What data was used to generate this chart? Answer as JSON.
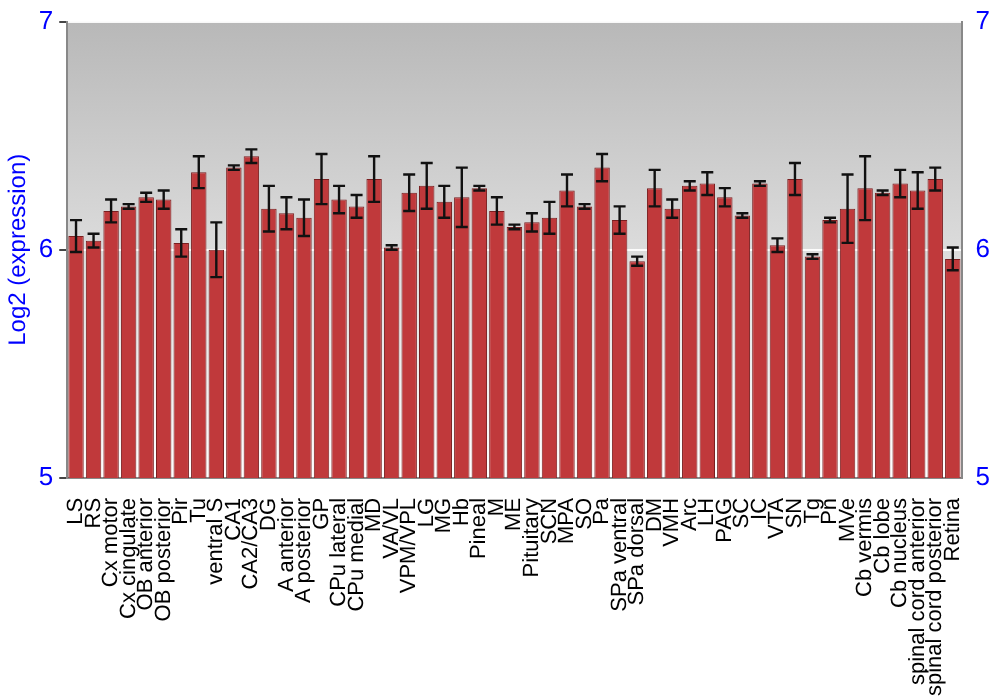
{
  "chart_data": {
    "type": "bar",
    "ylabel": "Log2 (expression)",
    "categories": [
      "LS",
      "RS",
      "Cx motor",
      "Cx cingulate",
      "OB anterior",
      "OB posterior",
      "Pir",
      "Tu",
      "ventral S",
      "CA1",
      "CA2/CA3",
      "DG",
      "A anterior",
      "A posterior",
      "GP",
      "CPu lateral",
      "CPu medial",
      "MD",
      "VA/VL",
      "VPM/VPL",
      "LG",
      "MG",
      "Hb",
      "Pineal",
      "M",
      "ME",
      "Pituitary",
      "SCN",
      "MPA",
      "SO",
      "Pa",
      "SPa ventral",
      "SPa dorsal",
      "DM",
      "VMH",
      "Arc",
      "LH",
      "PAG",
      "SC",
      "IC",
      "VTA",
      "SN",
      "Tg",
      "Pn",
      "MVe",
      "Cb vermis",
      "Cb lobe",
      "Cb nucleus",
      "spinal cord anterior",
      "spinal cord posterior",
      "Retina"
    ],
    "values": [
      6.06,
      6.04,
      6.17,
      6.19,
      6.23,
      6.22,
      6.03,
      6.34,
      6.0,
      6.36,
      6.41,
      6.18,
      6.16,
      6.14,
      6.31,
      6.22,
      6.19,
      6.31,
      6.01,
      6.25,
      6.28,
      6.21,
      6.23,
      6.27,
      6.17,
      6.1,
      6.12,
      6.14,
      6.26,
      6.19,
      6.36,
      6.13,
      5.95,
      6.27,
      6.18,
      6.28,
      6.29,
      6.23,
      6.15,
      6.29,
      6.02,
      6.31,
      5.97,
      6.13,
      6.18,
      6.27,
      6.25,
      6.29,
      6.26,
      6.31,
      5.96
    ],
    "errors": [
      0.07,
      0.03,
      0.05,
      0.01,
      0.02,
      0.04,
      0.06,
      0.07,
      0.12,
      0.01,
      0.03,
      0.1,
      0.07,
      0.08,
      0.11,
      0.06,
      0.05,
      0.1,
      0.01,
      0.08,
      0.1,
      0.07,
      0.13,
      0.01,
      0.06,
      0.01,
      0.04,
      0.07,
      0.07,
      0.01,
      0.06,
      0.06,
      0.02,
      0.08,
      0.04,
      0.02,
      0.05,
      0.04,
      0.01,
      0.01,
      0.03,
      0.07,
      0.01,
      0.01,
      0.15,
      0.14,
      0.01,
      0.06,
      0.08,
      0.05,
      0.05
    ],
    "color": "#c0393b",
    "ylim": [
      5,
      7
    ],
    "yticks": [
      5,
      6,
      7
    ],
    "y2lim": [
      5,
      7
    ],
    "y2ticks": [
      5,
      6,
      7
    ],
    "grid": "y",
    "legend": false
  }
}
